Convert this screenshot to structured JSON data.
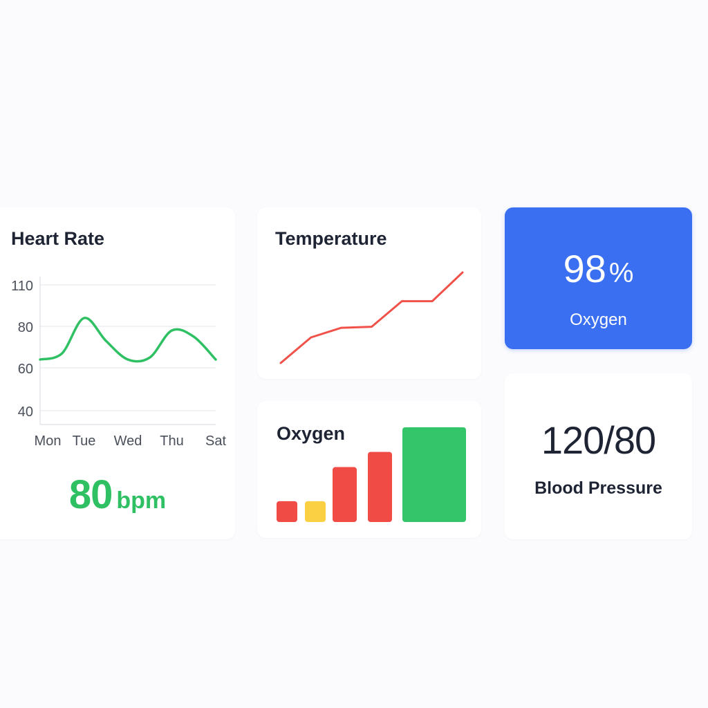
{
  "colors": {
    "background": "#fbfbfd",
    "card": "#ffffff",
    "text": "#1e2433",
    "axis_text": "#4a4f5a",
    "grid": "#e3e5ea",
    "heart_rate_line": "#2fc064",
    "temperature_line": "#f0524a",
    "oxygen_tile": "#3a6ff2",
    "bar_red": "#f04b45",
    "bar_yellow": "#fbd043",
    "bar_green": "#34c46a"
  },
  "heart_rate": {
    "title": "Heart Rate",
    "value": "80",
    "unit": "bpm"
  },
  "temperature": {
    "title": "Temperature"
  },
  "oxygen_chart": {
    "title": "Oxygen"
  },
  "oxygen_tile": {
    "value": "98",
    "unit": "%",
    "label": "Oxygen"
  },
  "blood_pressure": {
    "value": "120/80",
    "label": "Blood Pressure"
  },
  "chart_data": [
    {
      "type": "line",
      "title": "Heart Rate",
      "categories": [
        "Mon",
        "Tue",
        "Wed",
        "Thu",
        "Sat"
      ],
      "x": [
        0,
        0.5,
        1,
        1.5,
        2,
        2.5,
        3,
        3.5,
        4
      ],
      "values": [
        64,
        67,
        86,
        73,
        64,
        65,
        78,
        75,
        64
      ],
      "yticks": [
        110,
        80,
        60,
        40
      ],
      "ylim": [
        35,
        112
      ],
      "grid": true,
      "color": "#2fc064"
    },
    {
      "type": "line",
      "title": "Temperature",
      "x": [
        0,
        1,
        2,
        3,
        4,
        5,
        6
      ],
      "values": [
        0,
        24,
        33,
        34,
        58,
        58,
        85
      ],
      "ylim": [
        0,
        100
      ],
      "grid": false,
      "color": "#f0524a"
    },
    {
      "type": "bar",
      "title": "Oxygen",
      "values": [
        22,
        22,
        58,
        74,
        100
      ],
      "colors": [
        "#f04b45",
        "#fbd043",
        "#f04b45",
        "#f04b45",
        "#34c46a"
      ],
      "ylim": [
        0,
        100
      ],
      "grid": false
    }
  ]
}
